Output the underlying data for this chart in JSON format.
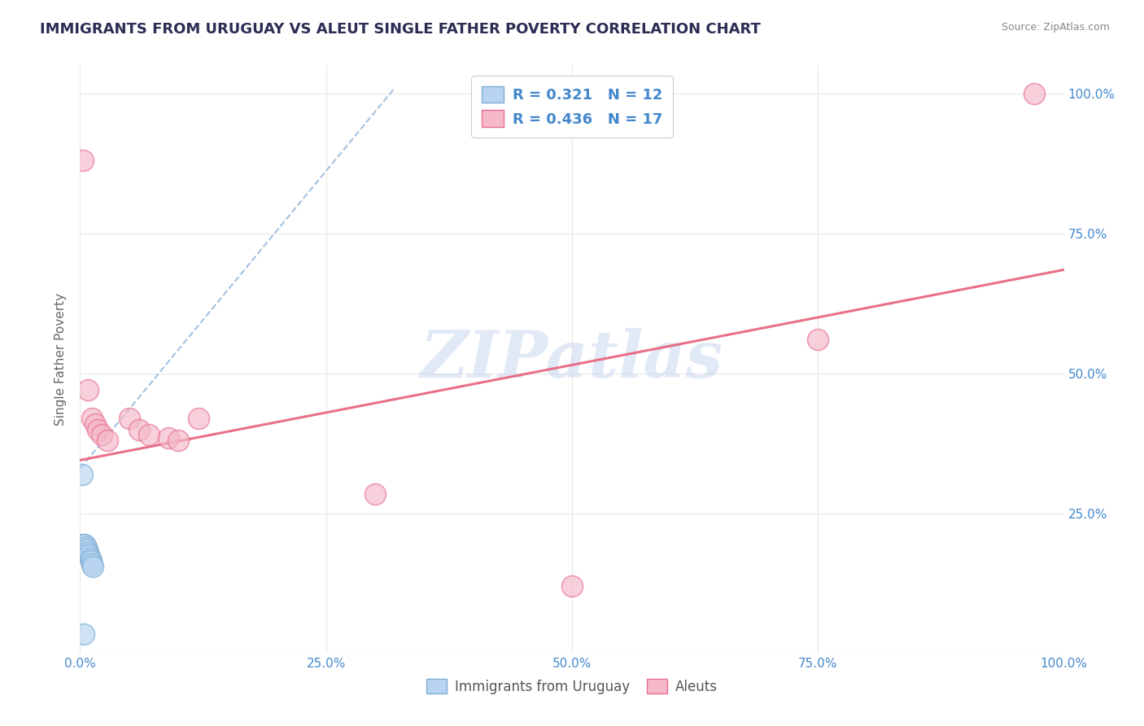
{
  "title": "IMMIGRANTS FROM URUGUAY VS ALEUT SINGLE FATHER POVERTY CORRELATION CHART",
  "source": "Source: ZipAtlas.com",
  "ylabel": "Single Father Poverty",
  "xlim": [
    0.0,
    1.0
  ],
  "ylim": [
    0.0,
    1.05
  ],
  "x_ticks": [
    0.0,
    0.25,
    0.5,
    0.75,
    1.0
  ],
  "x_ticklabels": [
    "0.0%",
    "25.0%",
    "50.0%",
    "75.0%",
    "100.0%"
  ],
  "y_ticks": [
    0.0,
    0.25,
    0.5,
    0.75,
    1.0
  ],
  "y_ticklabels": [
    "",
    "25.0%",
    "50.0%",
    "75.0%",
    "100.0%"
  ],
  "legend_entries": [
    {
      "label": "R = 0.321   N = 12"
    },
    {
      "label": "R = 0.436   N = 17"
    }
  ],
  "legend_bottom": [
    "Immigrants from Uruguay",
    "Aleuts"
  ],
  "watermark": "ZIPatlas",
  "uruguay_points": [
    [
      0.003,
      0.195
    ],
    [
      0.005,
      0.195
    ],
    [
      0.006,
      0.19
    ],
    [
      0.007,
      0.185
    ],
    [
      0.008,
      0.18
    ],
    [
      0.009,
      0.175
    ],
    [
      0.01,
      0.17
    ],
    [
      0.011,
      0.165
    ],
    [
      0.012,
      0.16
    ],
    [
      0.013,
      0.155
    ],
    [
      0.004,
      0.035
    ],
    [
      0.002,
      0.32
    ]
  ],
  "aleut_points": [
    [
      0.003,
      0.88
    ],
    [
      0.008,
      0.47
    ],
    [
      0.012,
      0.42
    ],
    [
      0.015,
      0.41
    ],
    [
      0.018,
      0.4
    ],
    [
      0.022,
      0.39
    ],
    [
      0.028,
      0.38
    ],
    [
      0.05,
      0.42
    ],
    [
      0.06,
      0.4
    ],
    [
      0.07,
      0.39
    ],
    [
      0.09,
      0.385
    ],
    [
      0.1,
      0.38
    ],
    [
      0.3,
      0.285
    ],
    [
      0.5,
      0.12
    ],
    [
      0.75,
      0.56
    ],
    [
      0.97,
      1.0
    ],
    [
      0.12,
      0.42
    ]
  ],
  "uruguay_trend_x": [
    0.0,
    0.32
  ],
  "uruguay_trend_y": [
    0.33,
    1.01
  ],
  "aleut_trend_x": [
    0.0,
    1.0
  ],
  "aleut_trend_y": [
    0.345,
    0.685
  ],
  "blue_fill": "#b8d4f0",
  "blue_edge": "#7bafd4",
  "pink_fill": "#f4b8c8",
  "pink_edge": "#e87090",
  "trend_blue_color": "#99bbdd",
  "trend_pink_color": "#e8607a",
  "background_color": "#ffffff",
  "grid_color": "#e8e8e8",
  "title_color": "#2c2c54",
  "axis_label_color": "#666666",
  "tick_label_color": "#4488cc",
  "watermark_color": "#c8d8ee",
  "source_color": "#888888",
  "legend_text_color": "#4488cc"
}
